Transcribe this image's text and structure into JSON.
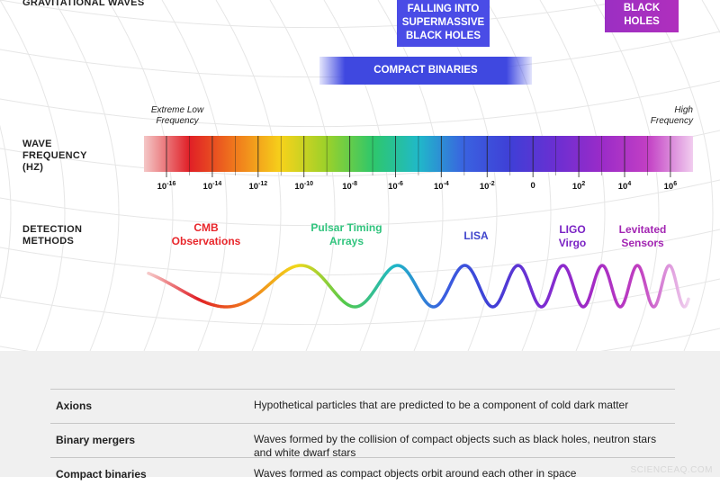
{
  "header": {
    "title": "GRAVITATIONAL WAVES"
  },
  "sources": {
    "supermassive": "FALLING INTO SUPERMASSIVE BLACK HOLES",
    "black_holes": "BLACK HOLES",
    "compact_binaries": "COMPACT BINARIES"
  },
  "frequency": {
    "row_label": "WAVE FREQUENCY (HZ)",
    "low_note": "Extreme Low Frequency",
    "high_note": "High Frequency",
    "ticks": [
      {
        "base": "10",
        "exp": "-16"
      },
      {
        "base": "10",
        "exp": "-14"
      },
      {
        "base": "10",
        "exp": "-12"
      },
      {
        "base": "10",
        "exp": "-10"
      },
      {
        "base": "10",
        "exp": "-8"
      },
      {
        "base": "10",
        "exp": "-6"
      },
      {
        "base": "10",
        "exp": "-4"
      },
      {
        "base": "10",
        "exp": "-2"
      },
      {
        "base": "0",
        "exp": ""
      },
      {
        "base": "10",
        "exp": "2"
      },
      {
        "base": "10",
        "exp": "4"
      },
      {
        "base": "10",
        "exp": "6"
      }
    ]
  },
  "detection": {
    "row_label": "DETECTION METHODS",
    "methods": [
      {
        "label": "CMB Observations",
        "color": "#e8262b"
      },
      {
        "label": "Pulsar Timing Arrays",
        "color": "#31c47e"
      },
      {
        "label": "LISA",
        "color": "#3f44cc"
      },
      {
        "label": "LIGO Virgo",
        "color": "#7a22c4"
      },
      {
        "label": "Levitated Sensors",
        "color": "#a326b3"
      }
    ]
  },
  "glossary": [
    {
      "term": "Axions",
      "definition": "Hypothetical particles that are predicted to be a component of cold dark matter"
    },
    {
      "term": "Binary mergers",
      "definition": "Waves formed by the collision of compact objects such as black holes, neutron stars and white dwarf stars"
    },
    {
      "term": "Compact binaries",
      "definition": "Waves formed as compact objects orbit around each other in space"
    }
  ],
  "watermark": "SCIENCEAQ.COM",
  "colors": {
    "spectrum": [
      "#f4c7c7",
      "#e01f26",
      "#f07a1c",
      "#f6d21b",
      "#9bd12a",
      "#2ec76b",
      "#20b9c9",
      "#3a62e0",
      "#3f3fd6",
      "#6b2fd2",
      "#9a2bc8",
      "#c23fc4",
      "#f1cdef"
    ]
  }
}
